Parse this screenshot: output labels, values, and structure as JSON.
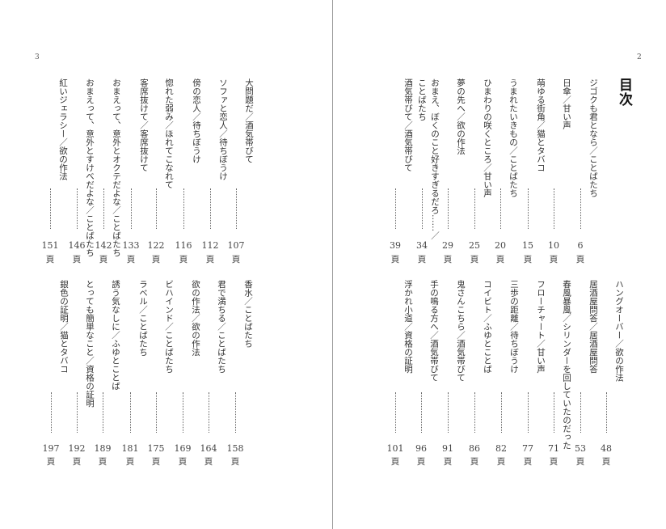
{
  "right_page": {
    "folio": "2",
    "heading": "目次",
    "blocks": [
      {
        "entries": [
          {
            "title": "ジゴクも君となら／ことばたち",
            "page": "6"
          },
          {
            "title": "日傘／甘い声",
            "page": "10"
          },
          {
            "title": "萌ゆる街角／猫とタバコ",
            "page": "15"
          },
          {
            "title": "うまれたいきもの／ことばたち",
            "page": "20"
          },
          {
            "title": "ひまわりの咲くところ／甘い声",
            "page": "25"
          },
          {
            "title": "夢の先へ／欲の作法",
            "page": "29"
          },
          {
            "title": "おまえ、ぼくのこと好きすぎるだろ……／\nことばたち",
            "page": "34"
          },
          {
            "title": "酒気帯びて／酒気帯びて",
            "page": "39"
          }
        ]
      },
      {
        "entries": [
          {
            "title": "ハングオーバー／欲の作法",
            "page": "48"
          },
          {
            "title": "居酒屋問答／居酒屋問答",
            "page": "53"
          },
          {
            "title": "春風暴風／シリンダーを回していたのだった",
            "page": "71"
          },
          {
            "title": "フローチャート／甘い声",
            "page": "77"
          },
          {
            "title": "三歩の距離／待ちぼうけ",
            "page": "82"
          },
          {
            "title": "コイビト／ふゆとことば",
            "page": "86"
          },
          {
            "title": "鬼さんこちら／酒気帯びて",
            "page": "91"
          },
          {
            "title": "手の鳴る方へ／酒気帯びて",
            "page": "96"
          },
          {
            "title": "浮かれ小道／資格の証明",
            "page": "101"
          }
        ]
      }
    ]
  },
  "left_page": {
    "folio": "3",
    "blocks": [
      {
        "entries": [
          {
            "title": "大問題だ／酒気帯びて",
            "page": "107"
          },
          {
            "title": "ソファと恋人／待ちぼうけ",
            "page": "112"
          },
          {
            "title": "傍の恋人／待ちぼうけ",
            "page": "116"
          },
          {
            "title": "惚れた弱み／ほれてこなれて",
            "page": "122"
          },
          {
            "title": "客席抜けて／客席抜けて",
            "page": "133"
          },
          {
            "title": "おまえって、意外とオクテだよな／ことばたち",
            "page": "142"
          },
          {
            "title": "おまえって、意外とすけべだよな／ことばたち",
            "page": "146"
          },
          {
            "title": "紅いジェラシー／欲の作法",
            "page": "151"
          }
        ]
      },
      {
        "entries": [
          {
            "title": "香水／ことばたち",
            "page": "158"
          },
          {
            "title": "君で満ちる／ことばたち",
            "page": "164"
          },
          {
            "title": "欲の作法／欲の作法",
            "page": "169"
          },
          {
            "title": "ビハインド／ことばたち",
            "page": "175"
          },
          {
            "title": "ラベル／ことばたち",
            "page": "181"
          },
          {
            "title": "誘う気なしに／ふゆとことば",
            "page": "189"
          },
          {
            "title": "とっても簡単なこと／資格の証明",
            "page": "192"
          },
          {
            "title": "銀色の証明／猫とタバコ",
            "page": "197"
          }
        ]
      }
    ]
  },
  "page_unit": "頁"
}
